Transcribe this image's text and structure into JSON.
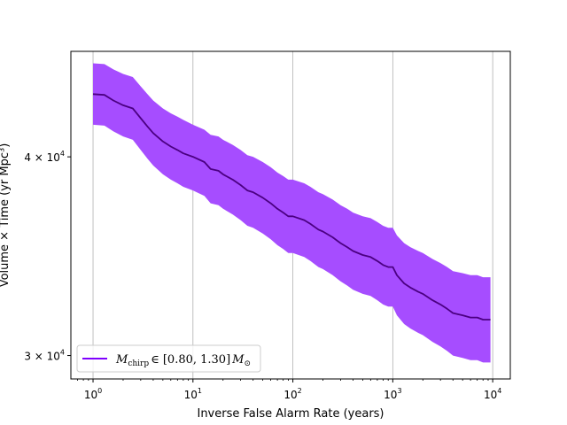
{
  "chart_data": {
    "type": "line",
    "xlabel": "Inverse False Alarm Rate (years)",
    "ylabel": "Volume × Time (yr Mpc³)",
    "xscale": "log",
    "yscale": "log",
    "xlim": [
      0.6,
      15000
    ],
    "ylim": [
      29000,
      46600
    ],
    "grid": "vertical major",
    "legend_position": "lower-left",
    "x_ticks": [
      {
        "value": 1,
        "base": "10",
        "exp": "0"
      },
      {
        "value": 10,
        "base": "10",
        "exp": "1"
      },
      {
        "value": 100,
        "base": "10",
        "exp": "2"
      },
      {
        "value": 1000,
        "base": "10",
        "exp": "3"
      },
      {
        "value": 10000,
        "base": "10",
        "exp": "4"
      }
    ],
    "y_ticks": [
      {
        "value": 30000,
        "mantissa": "3 × 10",
        "exp": "4"
      },
      {
        "value": 40000,
        "mantissa": "4 × 10",
        "exp": "4"
      }
    ],
    "series": [
      {
        "name": "M_chirp ∈ [0.80, 1.30] M_⊙",
        "legend_main": "M",
        "legend_sub": "chirp",
        "legend_range": "∈ [0.80, 1.30]",
        "legend_unit_main": "M",
        "legend_unit_sub": "⊙",
        "line_color": "#4b0082",
        "band_color": "#a64dff",
        "legend_line_color": "#7f00ff",
        "x": [
          1,
          1.3,
          1.6,
          2.0,
          2.5,
          3.0,
          3.5,
          4.0,
          5.0,
          6.0,
          7.0,
          8.0,
          10,
          13,
          15,
          18,
          20,
          25,
          30,
          35,
          40,
          50,
          60,
          70,
          80,
          90,
          100,
          130,
          150,
          180,
          200,
          250,
          300,
          350,
          400,
          500,
          600,
          700,
          800,
          900,
          1000,
          1100,
          1300,
          1500,
          1800,
          2000,
          2500,
          3000,
          3500,
          4000,
          5000,
          6000,
          7000,
          8000,
          9500
        ],
        "y": [
          43800,
          43750,
          43400,
          43100,
          42900,
          42300,
          41800,
          41400,
          40900,
          40600,
          40400,
          40200,
          40000,
          39700,
          39300,
          39200,
          39000,
          38700,
          38400,
          38100,
          38000,
          37700,
          37400,
          37100,
          36900,
          36700,
          36700,
          36500,
          36300,
          36000,
          35900,
          35600,
          35300,
          35100,
          34900,
          34700,
          34600,
          34400,
          34200,
          34100,
          34100,
          33700,
          33300,
          33100,
          32900,
          32800,
          32500,
          32300,
          32100,
          31900,
          31800,
          31700,
          31700,
          31600,
          31600
        ],
        "upper": [
          45800,
          45750,
          45400,
          45100,
          44900,
          44300,
          43800,
          43400,
          42900,
          42600,
          42400,
          42200,
          41900,
          41600,
          41300,
          41200,
          41000,
          40700,
          40400,
          40100,
          40000,
          39700,
          39400,
          39100,
          38900,
          38700,
          38700,
          38500,
          38300,
          38000,
          37900,
          37600,
          37300,
          37100,
          36900,
          36700,
          36600,
          36400,
          36200,
          36100,
          36100,
          35700,
          35300,
          35100,
          34900,
          34800,
          34500,
          34300,
          34100,
          33900,
          33800,
          33700,
          33700,
          33600,
          33600
        ],
        "lower": [
          41900,
          41850,
          41500,
          41200,
          41000,
          40400,
          39900,
          39500,
          39000,
          38700,
          38500,
          38300,
          38100,
          37800,
          37400,
          37300,
          37100,
          36800,
          36500,
          36200,
          36100,
          35800,
          35500,
          35200,
          35000,
          34800,
          34800,
          34600,
          34400,
          34100,
          34000,
          33700,
          33400,
          33200,
          33000,
          32800,
          32700,
          32500,
          32300,
          32200,
          32200,
          31800,
          31400,
          31200,
          31000,
          30900,
          30600,
          30400,
          30200,
          30000,
          29900,
          29800,
          29800,
          29700,
          29700
        ]
      }
    ]
  }
}
